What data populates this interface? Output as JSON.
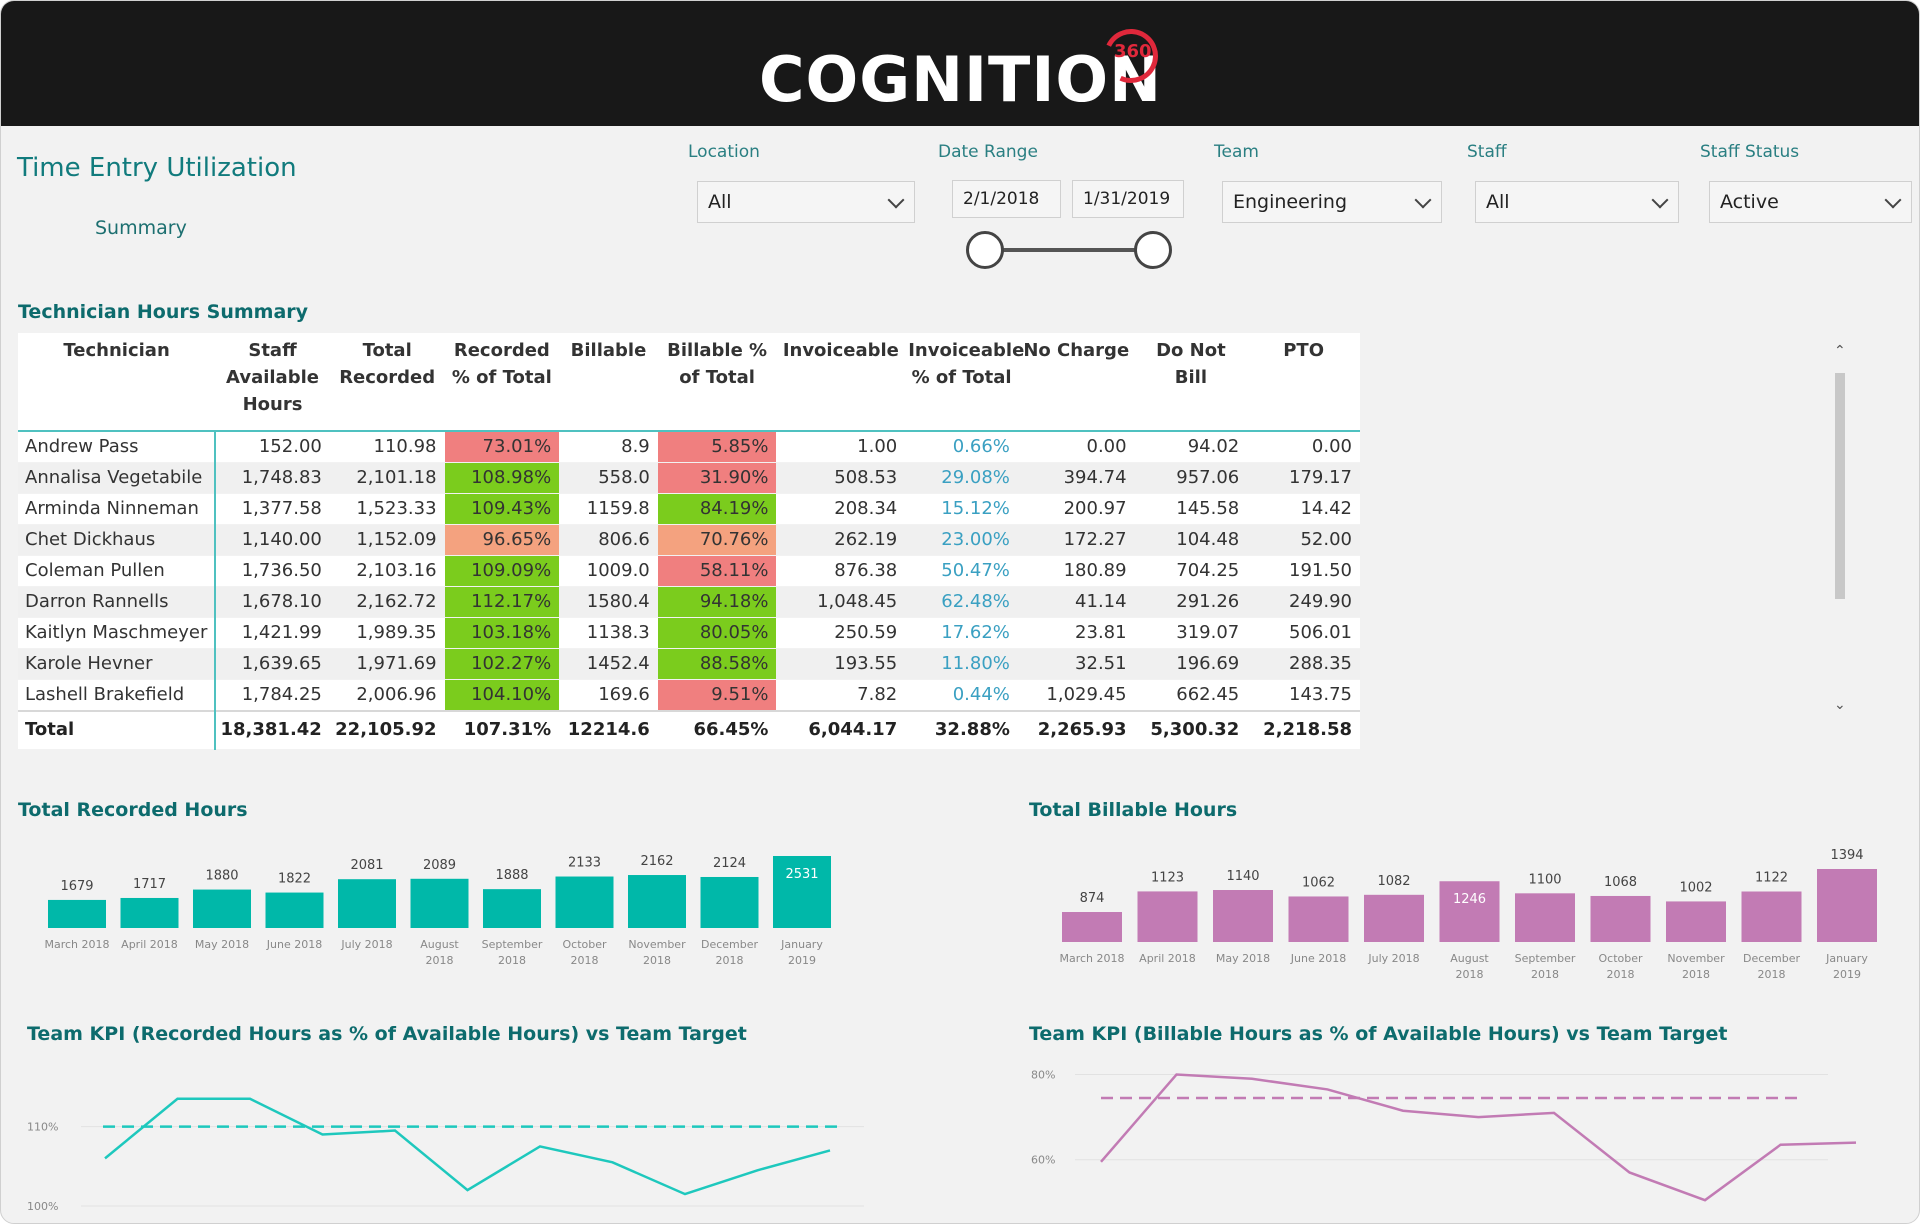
{
  "header": {
    "logo_text": "COGNITION",
    "logo_superscript": "360"
  },
  "page": {
    "title": "Time Entry Utilization",
    "summary_link": "Summary"
  },
  "filters": {
    "location": {
      "label": "Location",
      "value": "All"
    },
    "date_range": {
      "label": "Date Range",
      "start": "2/1/2018",
      "end": "1/31/2019"
    },
    "team": {
      "label": "Team",
      "value": "Engineering"
    },
    "staff": {
      "label": "Staff",
      "value": "All"
    },
    "staff_status": {
      "label": "Staff Status",
      "value": "Active"
    }
  },
  "table": {
    "title": "Technician Hours Summary",
    "columns": [
      "Technician",
      "Staff Available Hours",
      "Total Recorded",
      "Recorded % of Total",
      "Billable",
      "Billable % of Total",
      "Invoiceable",
      "Invoiceable % of Total",
      "No Charge",
      "Do Not Bill",
      "PTO"
    ],
    "rows": [
      [
        "Andrew Pass",
        "152.00",
        "110.98",
        "73.01%",
        "8.9",
        "5.85%",
        "1.00",
        "0.66%",
        "0.00",
        "94.02",
        "0.00"
      ],
      [
        "Annalisa Vegetabile",
        "1,748.83",
        "2,101.18",
        "108.98%",
        "558.0",
        "31.90%",
        "508.53",
        "29.08%",
        "394.74",
        "957.06",
        "179.17"
      ],
      [
        "Arminda Ninneman",
        "1,377.58",
        "1,523.33",
        "109.43%",
        "1159.8",
        "84.19%",
        "208.34",
        "15.12%",
        "200.97",
        "145.58",
        "14.42"
      ],
      [
        "Chet Dickhaus",
        "1,140.00",
        "1,152.09",
        "96.65%",
        "806.6",
        "70.76%",
        "262.19",
        "23.00%",
        "172.27",
        "104.48",
        "52.00"
      ],
      [
        "Coleman Pullen",
        "1,736.50",
        "2,103.16",
        "109.09%",
        "1009.0",
        "58.11%",
        "876.38",
        "50.47%",
        "180.89",
        "704.25",
        "191.50"
      ],
      [
        "Darron Rannells",
        "1,678.10",
        "2,162.72",
        "112.17%",
        "1580.4",
        "94.18%",
        "1,048.45",
        "62.48%",
        "41.14",
        "291.26",
        "249.90"
      ],
      [
        "Kaitlyn Maschmeyer",
        "1,421.99",
        "1,989.35",
        "103.18%",
        "1138.3",
        "80.05%",
        "250.59",
        "17.62%",
        "23.81",
        "319.07",
        "506.01"
      ],
      [
        "Karole Hevner",
        "1,639.65",
        "1,971.69",
        "102.27%",
        "1452.4",
        "88.58%",
        "193.55",
        "11.80%",
        "32.51",
        "196.69",
        "288.35"
      ],
      [
        "Lashell Brakefield",
        "1,784.25",
        "2,006.96",
        "104.10%",
        "169.6",
        "9.51%",
        "7.82",
        "0.44%",
        "1,029.45",
        "662.45",
        "143.75"
      ]
    ],
    "recorded_pct_colors": [
      "#f07f7f",
      "#7bcc1d",
      "#7bcc1d",
      "#f4a27f",
      "#7bcc1d",
      "#7bcc1d",
      "#7bcc1d",
      "#7bcc1d",
      "#7bcc1d"
    ],
    "billable_pct_colors": [
      "#f07f7f",
      "#f07f7f",
      "#7bcc1d",
      "#f4a27f",
      "#f07f7f",
      "#7bcc1d",
      "#7bcc1d",
      "#7bcc1d",
      "#f07f7f"
    ],
    "total": [
      "Total",
      "18,381.42",
      "22,105.92",
      "107.31%",
      "12214.6",
      "66.45%",
      "6,044.17",
      "32.88%",
      "2,265.93",
      "5,300.32",
      "2,218.58"
    ]
  },
  "chart_data": [
    {
      "type": "bar",
      "title": "Total Recorded Hours",
      "categories": [
        "March 2018",
        "April 2018",
        "May 2018",
        "June 2018",
        "July 2018",
        "August 2018",
        "September 2018",
        "October 2018",
        "November 2018",
        "December 2018",
        "January 2019"
      ],
      "values": [
        1679,
        1717,
        1880,
        1822,
        2081,
        2089,
        1888,
        2133,
        2162,
        2124,
        2531
      ],
      "color": "#00b8a9",
      "highlight_index": 10
    },
    {
      "type": "bar",
      "title": "Total Billable Hours",
      "categories": [
        "March 2018",
        "April 2018",
        "May 2018",
        "June 2018",
        "July 2018",
        "August 2018",
        "September 2018",
        "October 2018",
        "November 2018",
        "December 2018",
        "January 2019"
      ],
      "values": [
        874,
        1123,
        1140,
        1062,
        1082,
        1246,
        1100,
        1068,
        1002,
        1122,
        1394
      ],
      "color": "#c27bb4",
      "highlight_index": 5
    },
    {
      "type": "line",
      "title": "Team KPI (Recorded Hours as % of Available Hours) vs Team Target",
      "values": [
        106,
        113.5,
        113.5,
        109,
        109.5,
        102,
        107.5,
        105.5,
        101.5,
        104.5,
        107
      ],
      "target": 110,
      "ylim": [
        100,
        117
      ],
      "yticks": [
        "100%",
        "110%"
      ],
      "color": "#1ec8bd"
    },
    {
      "type": "line",
      "title": "Team KPI (Billable Hours as % of Available Hours) vs Team Target",
      "values": [
        59.5,
        80,
        79,
        76.5,
        71.5,
        70,
        71,
        57,
        50.5,
        63.5,
        64
      ],
      "target": 74.5,
      "ylim": [
        55,
        82
      ],
      "yticks": [
        "60%",
        "80%"
      ],
      "color": "#c27bb4"
    }
  ]
}
